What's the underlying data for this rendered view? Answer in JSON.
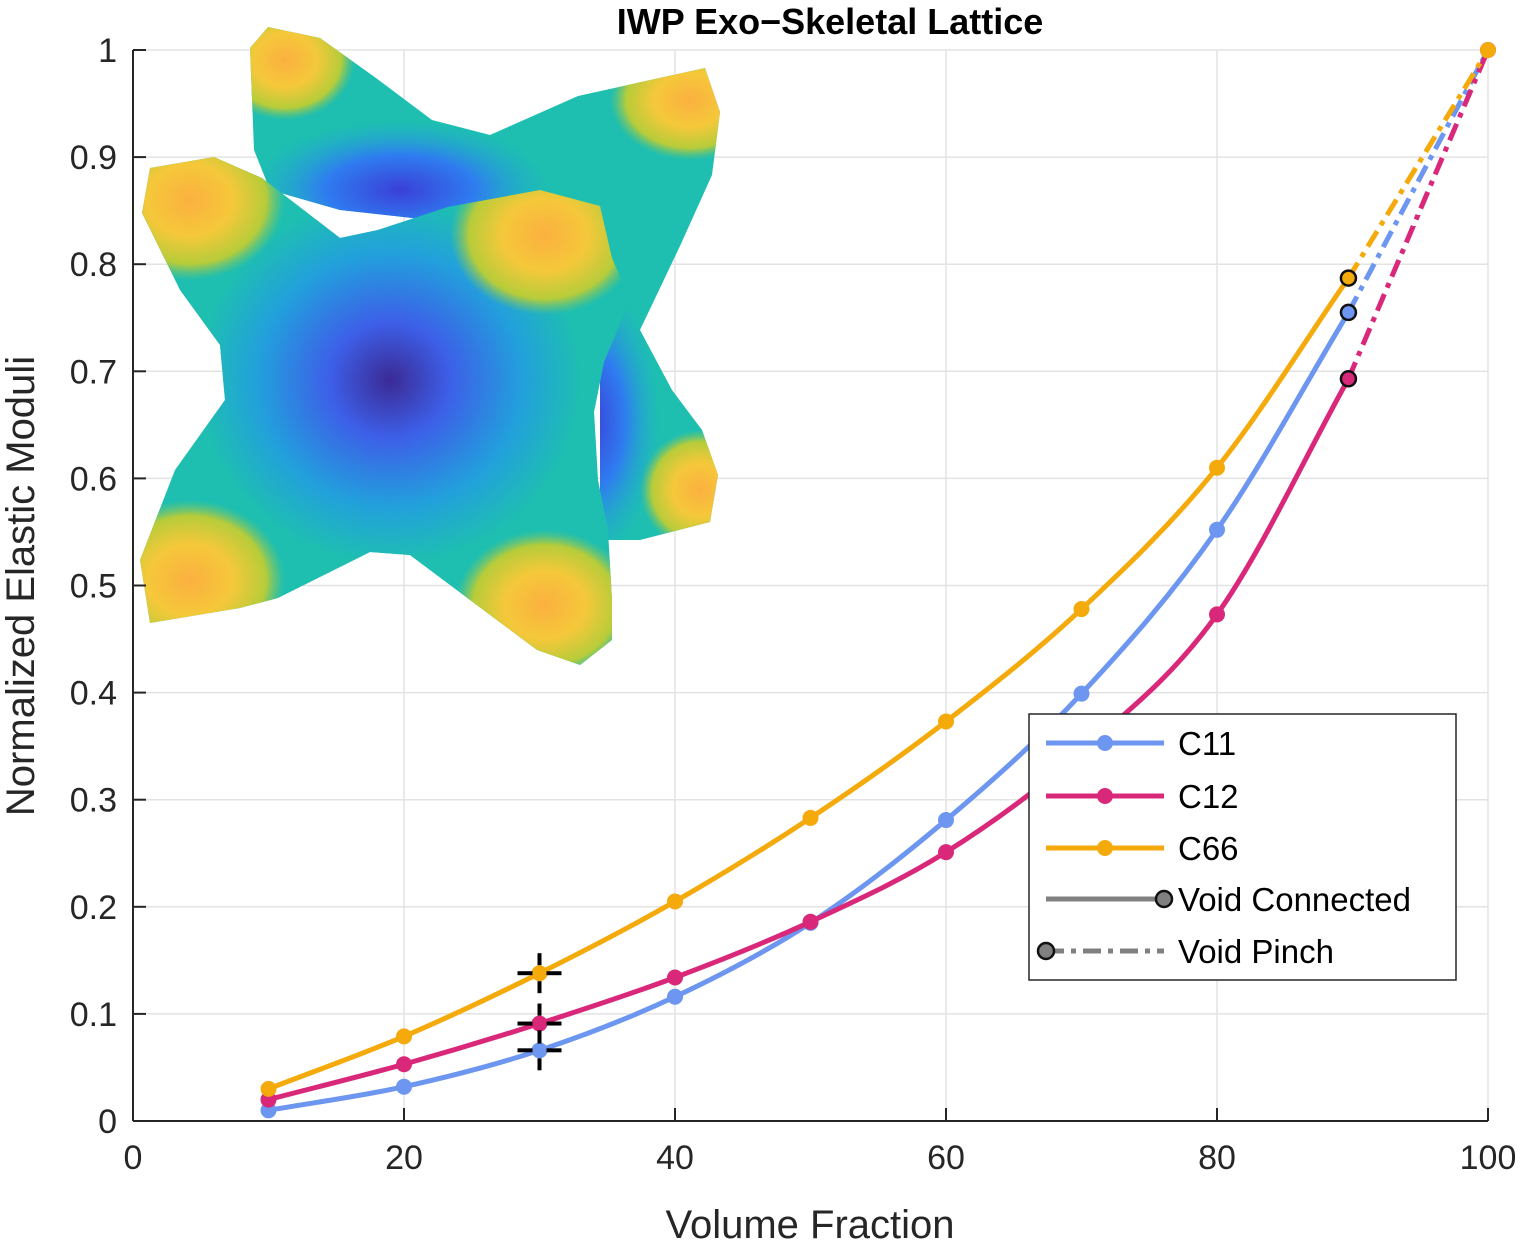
{
  "chart_data": {
    "type": "line",
    "title": "IWP Exo−Skeletal Lattice",
    "xlabel": "Volume Fraction",
    "ylabel": "Normalized Elastic Moduli",
    "xlim": [
      0,
      100
    ],
    "ylim": [
      0,
      1
    ],
    "xticks": [
      0,
      20,
      40,
      60,
      80,
      100
    ],
    "yticks": [
      0,
      0.1,
      0.2,
      0.3,
      0.4,
      0.5,
      0.6,
      0.7,
      0.8,
      0.9,
      1
    ],
    "xtick_labels": [
      "0",
      "20",
      "40",
      "60",
      "80",
      "100"
    ],
    "ytick_labels": [
      "0",
      "0.1",
      "0.2",
      "0.3",
      "0.4",
      "0.5",
      "0.6",
      "0.7",
      "0.8",
      "0.9",
      "1"
    ],
    "grid": true,
    "legend_position": "lower-right",
    "series": [
      {
        "name": "C11",
        "color": "#6c96f0",
        "x": [
          10,
          20,
          30,
          40,
          50,
          60,
          70,
          80,
          89.7,
          100
        ],
        "y": [
          0.01,
          0.032,
          0.066,
          0.116,
          0.185,
          0.281,
          0.399,
          0.552,
          0.755,
          1.0
        ]
      },
      {
        "name": "C12",
        "color": "#d9287a",
        "x": [
          10,
          20,
          30,
          40,
          50,
          60,
          70,
          80,
          89.7,
          100
        ],
        "y": [
          0.02,
          0.053,
          0.091,
          0.134,
          0.186,
          0.251,
          0.345,
          0.473,
          0.693,
          1.0
        ]
      },
      {
        "name": "C66",
        "color": "#f5aa0c",
        "x": [
          10,
          20,
          30,
          40,
          50,
          60,
          70,
          80,
          89.7,
          100
        ],
        "y": [
          0.03,
          0.079,
          0.138,
          0.205,
          0.283,
          0.373,
          0.478,
          0.61,
          0.787,
          1.0
        ]
      }
    ],
    "transition_x": 89.7,
    "legend_styles": [
      {
        "name": "Void Connected",
        "color": "#808080",
        "dash": "solid"
      },
      {
        "name": "Void Pinch",
        "color": "#808080",
        "dash": "dashdot"
      }
    ],
    "crosshair_x": 30,
    "inset": "iwp-lattice-surface-image"
  }
}
